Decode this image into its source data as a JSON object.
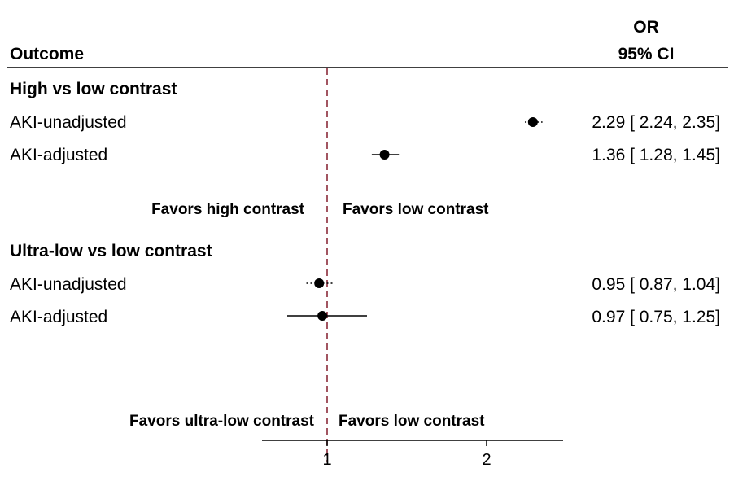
{
  "chart_data": {
    "type": "forest",
    "header": {
      "outcome": "Outcome",
      "or_line1": "OR",
      "or_line2": "95% CI"
    },
    "reference_line": 1,
    "xaxis": {
      "range": [
        0.6,
        2.5
      ],
      "ticks": [
        1,
        2
      ]
    },
    "groups": [
      {
        "title": "High vs low contrast",
        "favors_left": "Favors high contrast",
        "favors_right": "Favors low contrast",
        "rows": [
          {
            "label": "AKI-unadjusted",
            "or": 2.29,
            "lo": 2.24,
            "hi": 2.35,
            "text": "2.29 [ 2.24,  2.35]",
            "ci_style": "dotted"
          },
          {
            "label": "AKI-adjusted",
            "or": 1.36,
            "lo": 1.28,
            "hi": 1.45,
            "text": "1.36 [ 1.28,  1.45]",
            "ci_style": "solid"
          }
        ]
      },
      {
        "title": "Ultra-low vs low contrast",
        "favors_left": "Favors ultra-low contrast",
        "favors_right": "Favors low contrast",
        "rows": [
          {
            "label": "AKI-unadjusted",
            "or": 0.95,
            "lo": 0.87,
            "hi": 1.04,
            "text": "0.95 [ 0.87,  1.04]",
            "ci_style": "dotted"
          },
          {
            "label": "AKI-adjusted",
            "or": 0.97,
            "lo": 0.75,
            "hi": 1.25,
            "text": "0.97 [ 0.75,  1.25]",
            "ci_style": "solid"
          }
        ]
      }
    ],
    "colors": {
      "reference_line": "#8b2b3a",
      "marks": "#000000"
    }
  }
}
